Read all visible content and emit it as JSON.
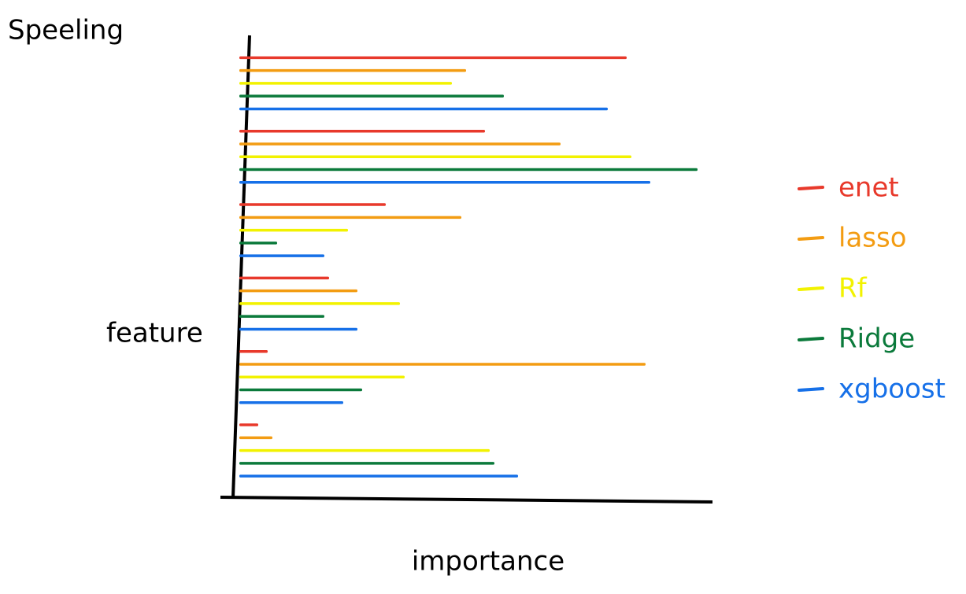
{
  "chart_data": {
    "type": "bar",
    "orientation": "horizontal",
    "title": "Speeling",
    "x_label": "importance",
    "y_label": "feature",
    "categories": [
      null,
      null,
      null,
      null,
      null,
      null
    ],
    "series": [
      {
        "name": "enet",
        "color": "#e8392b",
        "values": [
          82,
          52,
          31,
          19,
          6,
          4
        ]
      },
      {
        "name": "lasso",
        "color": "#f39c12",
        "values": [
          48,
          68,
          47,
          25,
          86,
          7
        ]
      },
      {
        "name": "Rf",
        "color": "#f2f200",
        "values": [
          45,
          83,
          23,
          34,
          35,
          53
        ]
      },
      {
        "name": "Ridge",
        "color": "#0b7a3b",
        "values": [
          56,
          97,
          8,
          18,
          26,
          54
        ]
      },
      {
        "name": "xgboost",
        "color": "#1670e8",
        "values": [
          78,
          87,
          18,
          25,
          22,
          59
        ]
      }
    ],
    "xlim": [
      0,
      100
    ],
    "legend": "right"
  }
}
